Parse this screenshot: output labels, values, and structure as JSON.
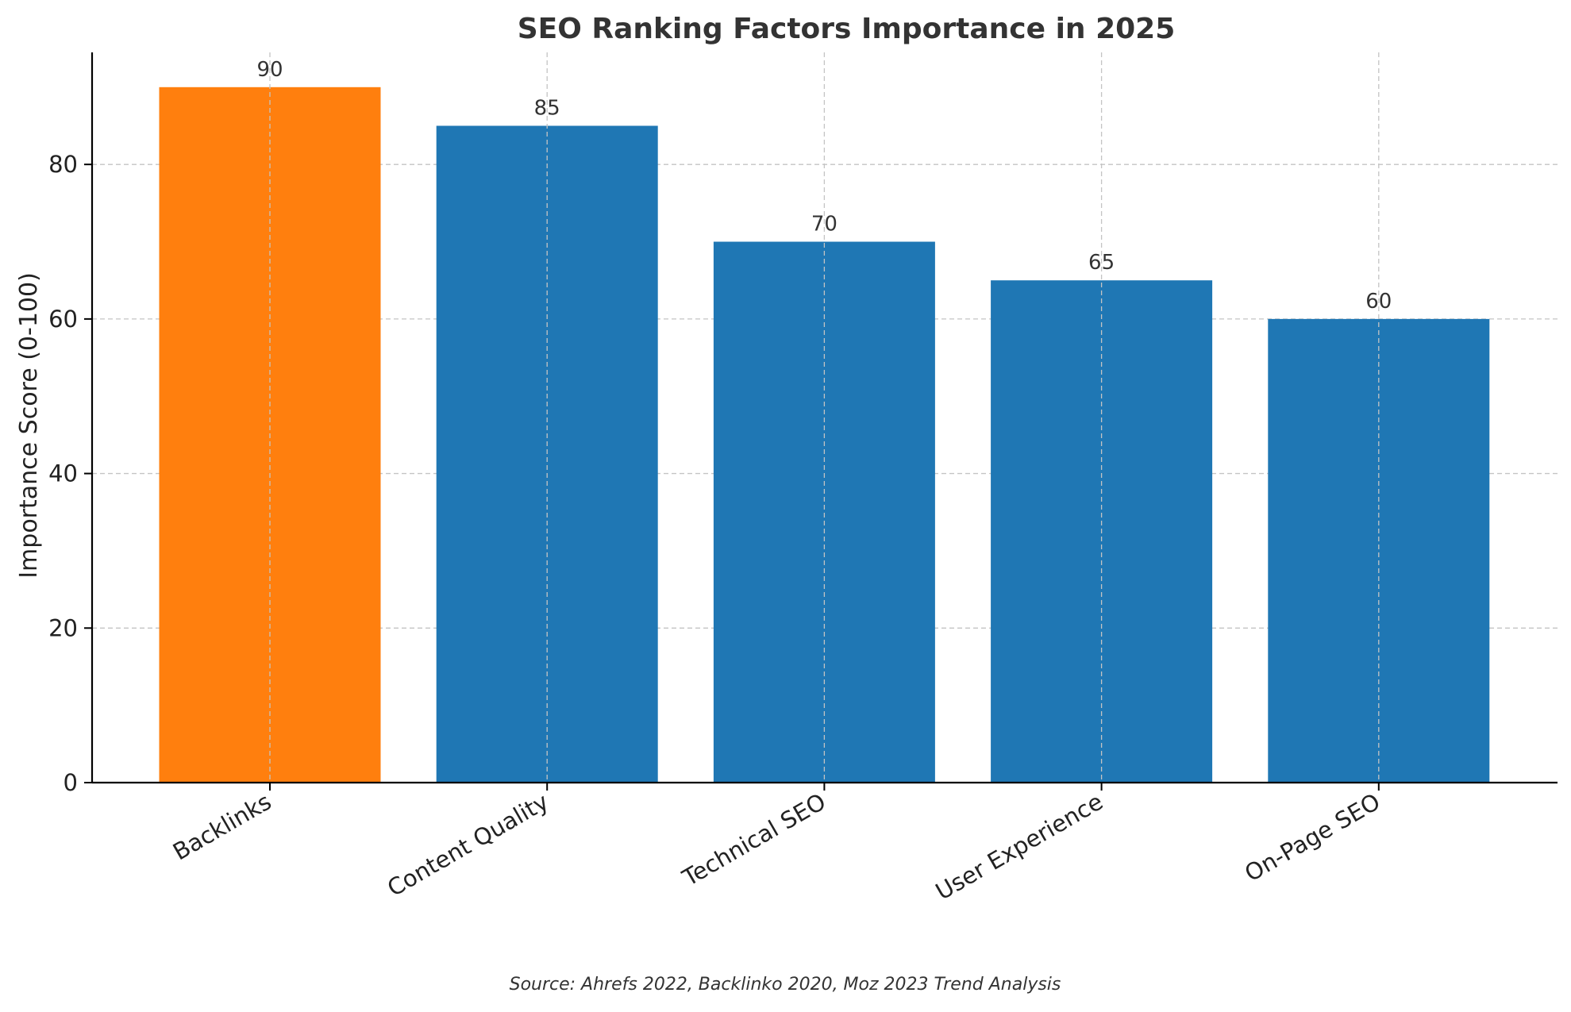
{
  "chart_data": {
    "type": "bar",
    "title": "SEO Ranking Factors Importance in 2025",
    "xlabel": "",
    "ylabel": "Importance Score (0-100)",
    "categories": [
      "Backlinks",
      "Content Quality",
      "Technical SEO",
      "User Experience",
      "On-Page SEO"
    ],
    "values": [
      90,
      85,
      70,
      65,
      60
    ],
    "data_labels": [
      "90",
      "85",
      "70",
      "65",
      "60"
    ],
    "bar_colors": [
      "#ff7f0e",
      "#1f77b4",
      "#1f77b4",
      "#1f77b4",
      "#1f77b4"
    ],
    "ylim": [
      0,
      94.5
    ],
    "yticks": [
      0,
      20,
      40,
      60,
      80
    ],
    "ytick_labels": [
      "0",
      "20",
      "40",
      "60",
      "80"
    ],
    "grid": true,
    "legend": "none",
    "source": "Source: Ahrefs 2022, Backlinko 2020, Moz 2023 Trend Analysis"
  }
}
